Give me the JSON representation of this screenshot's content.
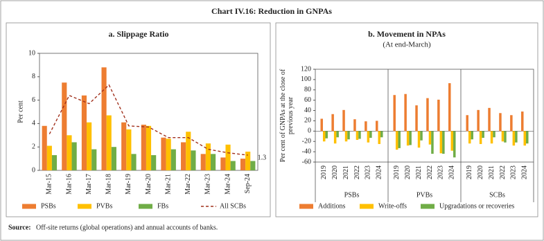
{
  "title": "Chart IV.16: Reduction in GNPAs",
  "source_label": "Source:",
  "source_text": "Off-site returns (global operations) and annual accounts of banks.",
  "chart_data": [
    {
      "type": "bar",
      "title": "a. Slippage Ratio",
      "ylabel": [
        "Per cent"
      ],
      "categories": [
        "Mar-15",
        "Mar-16",
        "Mar-17",
        "Mar-18",
        "Mar-19",
        "Mar-20",
        "Mar-21",
        "Mar-22",
        "Mar-23",
        "Mar-24",
        "Sep-24"
      ],
      "series": [
        {
          "name": "PSBs",
          "color": "#ed7d31",
          "values": [
            3.8,
            7.5,
            6.4,
            8.8,
            4.1,
            3.9,
            2.8,
            2.4,
            1.4,
            1.1,
            1.0
          ]
        },
        {
          "name": "PVBs",
          "color": "#ffc000",
          "values": [
            2.1,
            3.0,
            4.1,
            4.7,
            3.5,
            3.8,
            2.7,
            3.3,
            2.3,
            2.2,
            1.6
          ]
        },
        {
          "name": "FBs",
          "color": "#70ad47",
          "values": [
            1.3,
            2.4,
            1.8,
            2.0,
            1.4,
            1.3,
            1.8,
            1.7,
            1.4,
            0.8,
            0.8
          ]
        },
        {
          "name": "All SCBs",
          "color": "#a1301c",
          "type": "line",
          "line_style": "dashed",
          "label_last": true,
          "values": [
            3.1,
            6.4,
            5.7,
            7.3,
            3.8,
            3.7,
            2.8,
            2.8,
            1.8,
            1.5,
            1.3
          ]
        }
      ],
      "ylim": [
        0,
        10
      ],
      "yticks": [
        0,
        2,
        4,
        6,
        8,
        10
      ],
      "grid": false
    },
    {
      "type": "grouped-bar",
      "title": "b. Movement in NPAs",
      "subtitle": "(At end-March)",
      "ylabel": [
        "Per cent of GNPAs at the close of",
        "previous year"
      ],
      "categories": [
        "2019",
        "2020",
        "2021",
        "2022",
        "2023",
        "2024",
        "2019",
        "2020",
        "2021",
        "2022",
        "2023",
        "2024",
        "2019",
        "2020",
        "2021",
        "2022",
        "2023",
        "2024"
      ],
      "category_groups": [
        "PSBs",
        "PSBs",
        "PSBs",
        "PSBs",
        "PSBs",
        "PSBs",
        "PVBs",
        "PVBs",
        "PVBs",
        "PVBs",
        "PVBs",
        "PVBs",
        "SCBs",
        "SCBs",
        "SCBs",
        "SCBs",
        "SCBs",
        "SCBs"
      ],
      "series": [
        {
          "name": "Additions",
          "color": "#ed7d31",
          "values": [
            24,
            33,
            41,
            23,
            19,
            20,
            70,
            72,
            50,
            64,
            61,
            93,
            31,
            41,
            45,
            35,
            31,
            38
          ]
        },
        {
          "name": "Write-offs",
          "color": "#ffc000",
          "values": [
            -20,
            -24,
            -20,
            -17,
            -22,
            -25,
            -36,
            -28,
            -32,
            -26,
            -43,
            -38,
            -24,
            -25,
            -24,
            -20,
            -28,
            -28
          ]
        },
        {
          "name": "Upgradations or recoveries",
          "color": "#70ad47",
          "values": [
            -14,
            -12,
            -16,
            -15,
            -13,
            -12,
            -33,
            -27,
            -18,
            -44,
            -44,
            -51,
            -16,
            -13,
            -12,
            -22,
            -22,
            -24
          ]
        }
      ],
      "ylim": [
        -60,
        120
      ],
      "yticks": [
        -60,
        -40,
        -20,
        0,
        20,
        40,
        60,
        80,
        100,
        120
      ],
      "grid": false
    }
  ]
}
